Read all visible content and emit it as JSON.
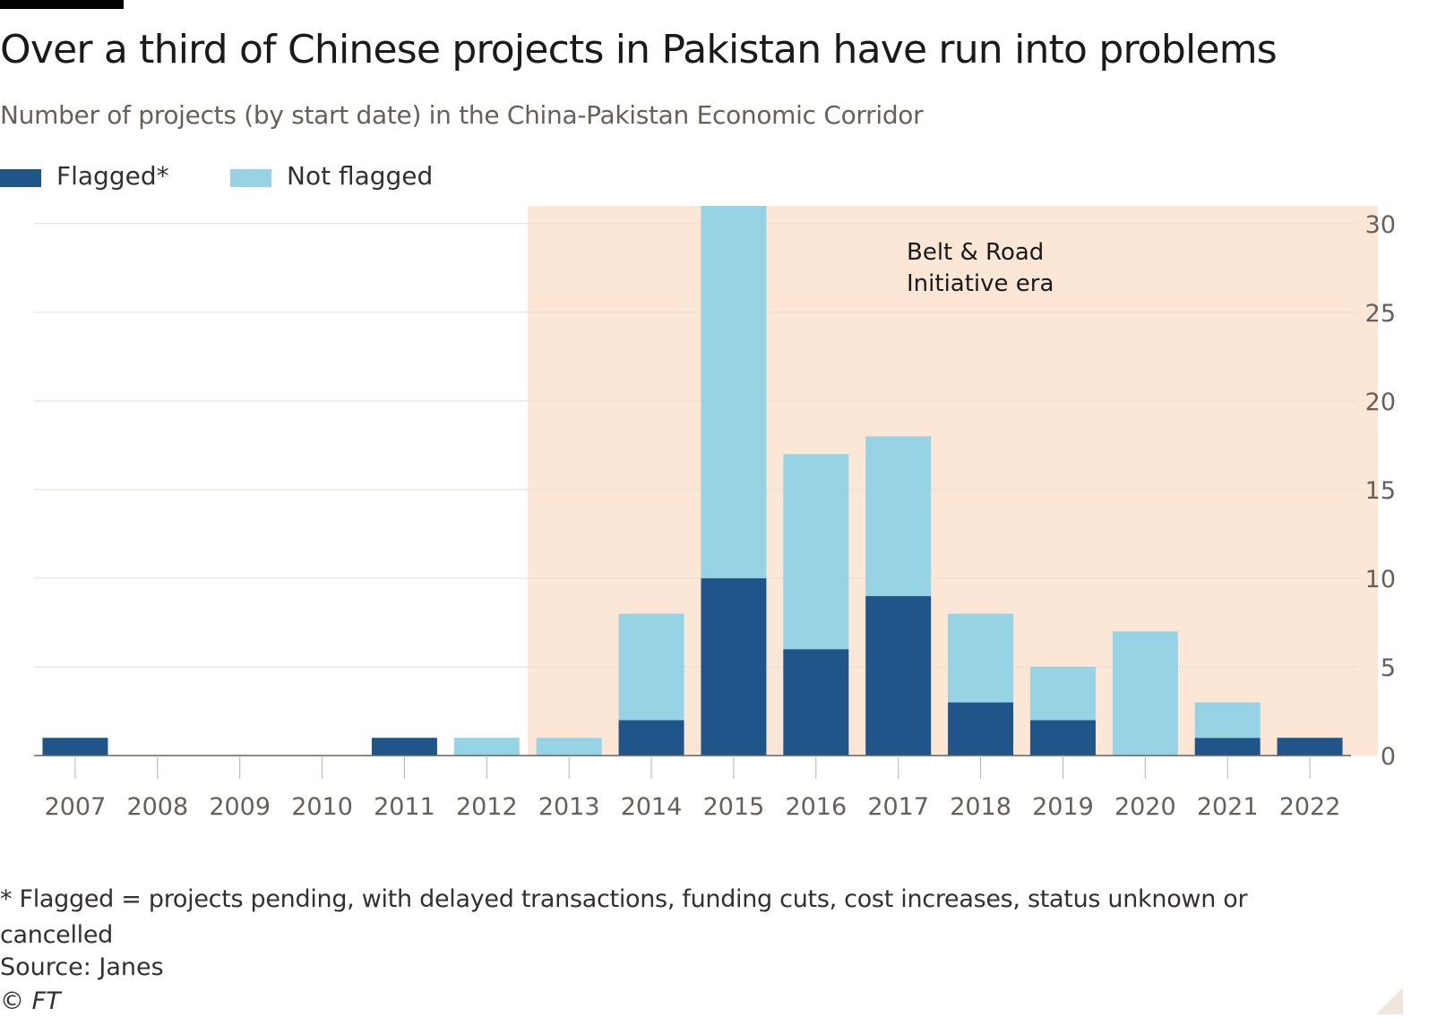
{
  "title": "Over a third of Chinese projects in Pakistan have run into problems",
  "subtitle": "Number of projects (by start date) in the China-Pakistan Economic Corridor",
  "legend": {
    "flagged_label": "Flagged*",
    "not_flagged_label": "Not flagged"
  },
  "annotation": {
    "line1": "Belt & Road",
    "line2": "Initiative era",
    "start_category": "2013",
    "end_category": "2022"
  },
  "colors": {
    "flagged": "#20558a",
    "not_flagged": "#96d3e5",
    "era_band": "#fce6d6",
    "gridline": "#e6ddd3",
    "axis": "#66605c"
  },
  "chart_data": {
    "type": "bar",
    "stacked": true,
    "categories": [
      "2007",
      "2008",
      "2009",
      "2010",
      "2011",
      "2012",
      "2013",
      "2014",
      "2015",
      "2016",
      "2017",
      "2018",
      "2019",
      "2020",
      "2021",
      "2022"
    ],
    "series": [
      {
        "name": "Flagged*",
        "values": [
          1,
          0,
          0,
          0,
          1,
          0,
          0,
          2,
          10,
          6,
          9,
          3,
          2,
          0,
          1,
          1
        ]
      },
      {
        "name": "Not flagged",
        "values": [
          0,
          0,
          0,
          0,
          0,
          1,
          1,
          6,
          21,
          11,
          9,
          5,
          3,
          7,
          2,
          0
        ]
      }
    ],
    "ylim": [
      0,
      31
    ],
    "yticks": [
      0,
      5,
      10,
      15,
      20,
      25,
      30
    ],
    "y_axis_side": "right",
    "grid": true,
    "legend_position": "top-left"
  },
  "footnote": "* Flagged = projects pending, with delayed transactions, funding cuts, cost increases, status unknown or cancelled",
  "source": "Source: Janes",
  "copyright": "© FT"
}
